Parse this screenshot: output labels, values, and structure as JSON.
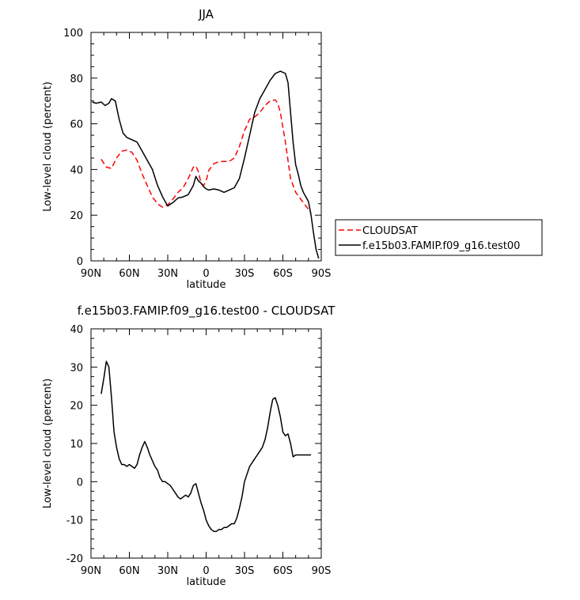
{
  "chart_data": [
    {
      "type": "line",
      "title": "JJA",
      "xlabel": "latitude",
      "ylabel": "Low-level cloud (percent)",
      "xlim": [
        90,
        -90
      ],
      "ylim": [
        0,
        100
      ],
      "xticks": [
        90,
        60,
        30,
        0,
        -30,
        -60,
        -90
      ],
      "xticklabels": [
        "90N",
        "60N",
        "30N",
        "0",
        "30S",
        "60S",
        "90S"
      ],
      "yticks": [
        0,
        20,
        40,
        60,
        80,
        100
      ],
      "yticklabels": [
        "0",
        "20",
        "40",
        "60",
        "80",
        "100"
      ],
      "grid": false,
      "legend": "right",
      "series": [
        {
          "name": "CLOUDSAT",
          "color": "#ff0000",
          "dash": "dashed",
          "x": [
            82,
            78,
            74,
            70,
            66,
            62,
            58,
            54,
            50,
            46,
            42,
            38,
            34,
            30,
            26,
            22,
            18,
            14,
            10,
            8,
            6,
            4,
            2,
            0,
            -2,
            -6,
            -10,
            -14,
            -18,
            -22,
            -26,
            -30,
            -34,
            -38,
            -42,
            -46,
            -50,
            -54,
            -56,
            -58,
            -62,
            -66,
            -70,
            -74,
            -78,
            -82
          ],
          "values": [
            44.5,
            41,
            40.5,
            45,
            48,
            48.5,
            47.5,
            44,
            38,
            33,
            28,
            25,
            23.5,
            24.5,
            27,
            30,
            32,
            36,
            41,
            41.5,
            39,
            34,
            33,
            35,
            39.5,
            42.5,
            43.5,
            43.5,
            43.5,
            45,
            50,
            57,
            62,
            63,
            65,
            68,
            70,
            70.5,
            69,
            65,
            52,
            36,
            30,
            27,
            24,
            21
          ]
        },
        {
          "name": "f.e15b03.FAMIP.f09_g16.test00",
          "color": "#000000",
          "dash": "solid",
          "x": [
            89,
            86,
            82,
            79,
            76,
            74,
            71,
            68,
            65,
            62,
            58,
            54,
            50,
            46,
            42,
            38,
            34,
            30,
            26,
            22,
            18,
            14,
            10,
            8,
            6,
            4,
            2,
            0,
            -2,
            -6,
            -10,
            -14,
            -18,
            -22,
            -26,
            -30,
            -34,
            -38,
            -42,
            -46,
            -50,
            -54,
            -58,
            -62,
            -64,
            -66,
            -68,
            -70,
            -72,
            -74,
            -76,
            -78,
            -80,
            -82,
            -84,
            -86,
            -88
          ],
          "values": [
            69.5,
            69,
            69.5,
            68,
            69,
            71,
            70,
            62,
            56,
            54,
            53,
            52,
            48,
            44,
            40,
            33,
            28,
            24,
            25.5,
            27.5,
            28,
            29,
            33,
            37,
            35,
            34,
            32.5,
            31.5,
            31,
            31.5,
            31,
            30,
            31,
            32,
            36,
            45,
            55,
            65,
            71,
            75,
            79,
            82,
            83,
            82,
            78,
            65,
            52,
            42,
            38,
            33,
            30,
            28,
            26,
            20,
            12,
            5,
            1
          ]
        }
      ]
    },
    {
      "type": "line",
      "title": "f.e15b03.FAMIP.f09_g16.test00 - CLOUDSAT",
      "xlabel": "latitude",
      "ylabel": "Low-level cloud (percent)",
      "xlim": [
        90,
        -90
      ],
      "ylim": [
        -20,
        40
      ],
      "xticks": [
        90,
        60,
        30,
        0,
        -30,
        -60,
        -90
      ],
      "xticklabels": [
        "90N",
        "60N",
        "30N",
        "0",
        "30S",
        "60S",
        "90S"
      ],
      "yticks": [
        -20,
        -10,
        0,
        10,
        20,
        30,
        40
      ],
      "yticklabels": [
        "-20",
        "-10",
        "0",
        "10",
        "20",
        "30",
        "40"
      ],
      "grid": false,
      "series": [
        {
          "color": "#000000",
          "dash": "solid",
          "x": [
            82,
            80,
            78,
            76,
            74,
            72,
            70,
            68,
            66,
            64,
            62,
            60,
            58,
            56,
            54,
            52,
            50,
            48,
            46,
            44,
            42,
            40,
            38,
            36,
            34,
            32,
            30,
            28,
            26,
            24,
            22,
            20,
            18,
            16,
            14,
            12,
            10,
            8,
            6,
            4,
            2,
            0,
            -2,
            -4,
            -6,
            -8,
            -10,
            -12,
            -14,
            -16,
            -18,
            -20,
            -22,
            -24,
            -26,
            -28,
            -30,
            -32,
            -34,
            -36,
            -38,
            -40,
            -42,
            -44,
            -46,
            -48,
            -50,
            -52,
            -54,
            -56,
            -58,
            -60,
            -62,
            -64,
            -66,
            -68,
            -70,
            -72,
            -74,
            -76,
            -78,
            -80,
            -82
          ],
          "values": [
            23,
            27,
            31.5,
            30,
            22,
            13,
            9,
            6,
            4.5,
            4.5,
            4,
            4.5,
            4,
            3.5,
            4.5,
            7,
            9,
            10.5,
            9,
            7,
            5.5,
            4,
            3,
            1,
            0,
            0,
            -0.5,
            -1,
            -2,
            -3,
            -4,
            -4.5,
            -4,
            -3.5,
            -4,
            -3,
            -1,
            -0.5,
            -3,
            -5.5,
            -7.5,
            -10,
            -11.5,
            -12.5,
            -13,
            -13,
            -12.5,
            -12.5,
            -12,
            -12,
            -11.5,
            -11,
            -11,
            -9.5,
            -7,
            -4,
            0,
            2,
            4,
            5,
            6,
            7,
            8,
            9,
            11,
            14,
            18,
            21.5,
            22,
            20,
            17,
            13,
            12,
            12.5,
            10,
            6.5,
            7,
            7,
            7,
            7,
            7,
            7,
            7
          ]
        }
      ]
    }
  ]
}
